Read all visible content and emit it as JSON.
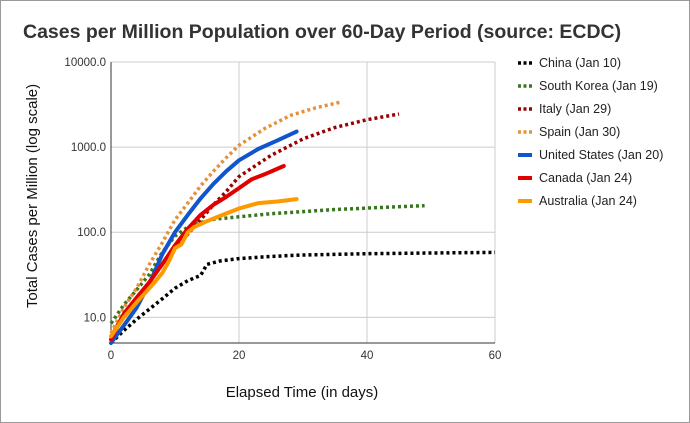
{
  "chart_data": {
    "type": "line",
    "title": "Cases per Million Population over 60-Day Period (source: ECDC)",
    "xlabel": "Elapsed Time (in days)",
    "ylabel": "Total Cases per Million (log scale)",
    "xlim": [
      0,
      60
    ],
    "ylim": [
      5,
      10000
    ],
    "yscale": "log",
    "grid": true,
    "legend_position": "right",
    "xticks": [
      0,
      20,
      40,
      60
    ],
    "xtick_labels": [
      "0",
      "20",
      "40",
      "60"
    ],
    "yticks": [
      10,
      100,
      1000,
      10000
    ],
    "ytick_labels": [
      "10.0",
      "100.0",
      "1000.0",
      "10000.0"
    ],
    "series": [
      {
        "name": "China (Jan 10)",
        "color": "#000000",
        "style": "dotted",
        "x": [
          0,
          2,
          4,
          6,
          8,
          10,
          12,
          13,
          14,
          15,
          17,
          20,
          25,
          30,
          40,
          50,
          60
        ],
        "y": [
          5.0,
          7.0,
          9.5,
          12.5,
          16.5,
          22,
          27,
          29,
          31,
          42,
          46,
          49,
          52,
          54,
          56,
          57,
          58
        ]
      },
      {
        "name": "South Korea (Jan 19)",
        "color": "#38761d",
        "style": "dotted",
        "x": [
          0,
          2,
          4,
          6,
          8,
          10,
          12,
          14,
          16,
          20,
          25,
          30,
          35,
          40,
          49
        ],
        "y": [
          8.5,
          14,
          21,
          32,
          58,
          90,
          115,
          130,
          142,
          152,
          165,
          175,
          185,
          192,
          205
        ]
      },
      {
        "name": "Italy (Jan 29)",
        "color": "#990000",
        "style": "dotted",
        "x": [
          0,
          2,
          4,
          6,
          8,
          10,
          12,
          14,
          16,
          18,
          20,
          25,
          30,
          35,
          40,
          45
        ],
        "y": [
          6,
          11,
          17,
          26,
          42,
          65,
          95,
          140,
          210,
          300,
          450,
          800,
          1250,
          1700,
          2100,
          2450
        ]
      },
      {
        "name": "Spain (Jan 30)",
        "color": "#e69138",
        "style": "dotted",
        "x": [
          0,
          2,
          4,
          6,
          8,
          10,
          12,
          14,
          16,
          18,
          20,
          24,
          28,
          32,
          36
        ],
        "y": [
          6.5,
          13,
          22,
          42,
          75,
          140,
          220,
          350,
          520,
          750,
          1050,
          1650,
          2350,
          2900,
          3400
        ]
      },
      {
        "name": "United States (Jan 20)",
        "color": "#1155cc",
        "style": "solid",
        "x": [
          0,
          2,
          4,
          6,
          8,
          10,
          12,
          14,
          16,
          18,
          20,
          23,
          26,
          29
        ],
        "y": [
          5,
          8,
          13,
          25,
          55,
          100,
          160,
          250,
          370,
          520,
          700,
          950,
          1200,
          1520
        ]
      },
      {
        "name": "Canada (Jan 24)",
        "color": "#e00000",
        "style": "solid",
        "x": [
          0,
          2,
          4,
          6,
          8,
          10,
          12,
          14,
          16,
          18,
          20,
          22,
          24,
          27
        ],
        "y": [
          5.5,
          11,
          17,
          26,
          42,
          70,
          110,
          160,
          210,
          260,
          330,
          420,
          480,
          600
        ]
      },
      {
        "name": "Australia (Jan 24)",
        "color": "#ff9900",
        "style": "solid",
        "x": [
          0,
          2,
          4,
          6,
          8,
          9,
          10,
          11,
          12,
          13,
          15,
          17,
          20,
          23,
          26,
          29
        ],
        "y": [
          6,
          10,
          15,
          22,
          33,
          45,
          65,
          72,
          100,
          115,
          135,
          155,
          190,
          220,
          230,
          245
        ]
      }
    ]
  }
}
